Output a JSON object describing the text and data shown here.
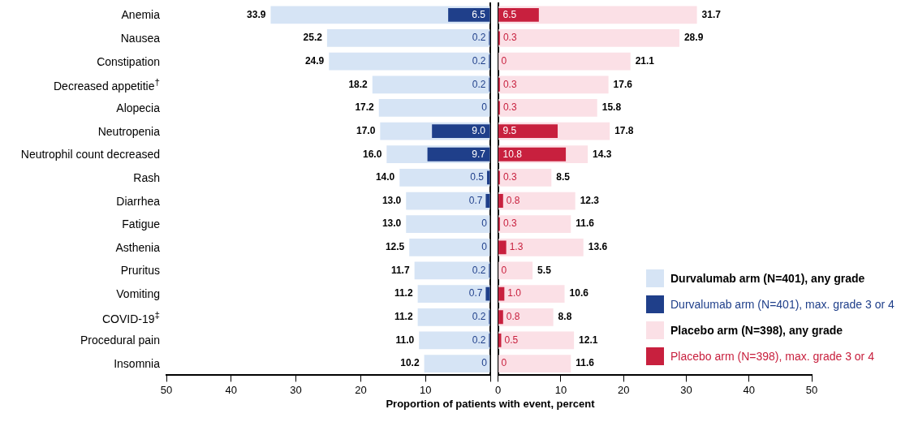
{
  "chart_data": [
    {
      "type": "bar",
      "orientation": "horizontal",
      "xlabel": "Proportion of patients with event, percent",
      "categories": [
        "Anemia",
        "Nausea",
        "Constipation",
        "Decreased appetitie$^{†}$",
        "Alopecia",
        "Neutropenia",
        "Neutrophil count decreased",
        "Rash",
        "Diarrhea",
        "Fatigue",
        "Asthenia",
        "Pruritus",
        "Vomiting",
        "COVID-19$^{‡}$",
        "Procedural pain",
        "Insomnia"
      ],
      "series": [
        {
          "name": "Durvalumab arm (N=401), any grade",
          "color": "#d6e4f5",
          "values": [
            33.9,
            25.2,
            24.9,
            18.2,
            17.2,
            17.0,
            16.0,
            14.0,
            13.0,
            13.0,
            12.5,
            11.7,
            11.2,
            11.2,
            11.0,
            10.2
          ],
          "value_labels": [
            "33.9",
            "25.2",
            "24.9",
            "18.2",
            "17.2",
            "17.0",
            "16.0",
            "14.0",
            "13.0",
            "13.0",
            "12.5",
            "11.7",
            "11.2",
            "11.2",
            "11.0",
            "10.2"
          ]
        },
        {
          "name": "Durvalumab arm (N=401), max. grade 3 or 4",
          "color": "#1f3f8a",
          "values": [
            6.5,
            0.2,
            0.2,
            0.2,
            0,
            9.0,
            9.7,
            0.5,
            0.7,
            0,
            0,
            0.2,
            0.7,
            0.2,
            0.2,
            0
          ],
          "value_labels": [
            "6.5",
            "0.2",
            "0.2",
            "0.2",
            "0",
            "9.0",
            "9.7",
            "0.5",
            "0.7",
            "0",
            "0",
            "0.2",
            "0.7",
            "0.2",
            "0.2",
            "0"
          ]
        }
      ],
      "xlim": [
        50,
        0
      ],
      "xticks": [
        50,
        40,
        30,
        20,
        10,
        {
          "value": 0,
          "label": null
        }
      ],
      "legend": "bottom right"
    },
    {
      "type": "bar",
      "orientation": "horizontal",
      "tick_labels": "x",
      "categories": [
        null,
        null,
        null,
        null,
        null,
        null,
        null,
        null,
        null,
        null,
        null,
        null,
        null,
        null,
        null,
        null
      ],
      "series": [
        {
          "name": "Placebo arm (N=398), any grade",
          "color": "#fbe0e6",
          "values": [
            31.7,
            28.9,
            21.1,
            17.6,
            15.8,
            17.8,
            14.3,
            8.5,
            12.3,
            11.6,
            13.6,
            5.5,
            10.6,
            8.8,
            12.1,
            11.6
          ],
          "value_labels": [
            "31.7",
            "28.9",
            "21.1",
            "17.6",
            "15.8",
            "17.8",
            "14.3",
            "8.5",
            "12.3",
            "11.6",
            "13.6",
            "5.5",
            "10.6",
            "8.8",
            "12.1",
            "11.6"
          ]
        },
        {
          "name": "Placebo arm (N=398), max. grade 3 or 4",
          "color": "#c8203e",
          "values": [
            6.5,
            0.3,
            0,
            0.3,
            0.3,
            9.5,
            10.8,
            0.3,
            0.8,
            0.3,
            1.3,
            0,
            1.0,
            0.8,
            0.5,
            0
          ],
          "value_labels": [
            "6.5",
            "0.3",
            "0",
            "0.3",
            "0.3",
            "9.5",
            "10.8",
            "0.3",
            "0.8",
            "0.3",
            "1.3",
            "0",
            "1.0",
            "0.8",
            "0.5",
            "0"
          ]
        }
      ],
      "xlim": [
        0,
        50
      ],
      "xticks": [
        0,
        10,
        20,
        30,
        40,
        50
      ],
      "legend": "bottom right"
    }
  ]
}
